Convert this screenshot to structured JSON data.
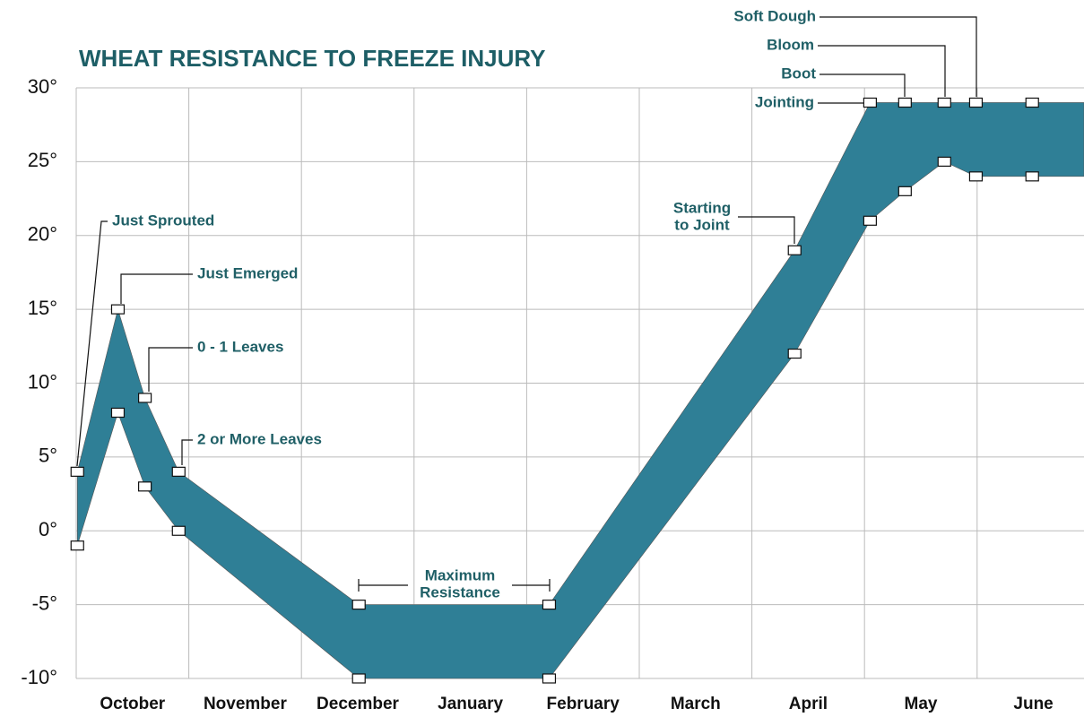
{
  "chart_data": {
    "type": "band",
    "title": "WHEAT RESISTANCE TO FREEZE INJURY",
    "categories": [
      "October",
      "November",
      "December",
      "January",
      "February",
      "March",
      "April",
      "May",
      "June"
    ],
    "x": [
      0.01,
      0.37,
      0.61,
      0.91,
      2.51,
      4.2,
      6.38,
      7.05,
      7.36,
      7.71,
      7.99,
      8.49,
      8.95
    ],
    "high": [
      4,
      15,
      9,
      4,
      -5,
      -5,
      19,
      29,
      29,
      29,
      29,
      29,
      29
    ],
    "low": [
      -1,
      8,
      3,
      0,
      -10,
      -10,
      12,
      21,
      23,
      25,
      24,
      24,
      24
    ],
    "color": "#2f7f96",
    "xlim": [
      0,
      8.95
    ],
    "ylim": [
      -10,
      30
    ],
    "yticks": [
      {
        "value": -10,
        "label": "-10°"
      },
      {
        "value": -5,
        "label": "-5°"
      },
      {
        "value": 0,
        "label": "0°"
      },
      {
        "value": 5,
        "label": "5°"
      },
      {
        "value": 10,
        "label": "10°"
      },
      {
        "value": 15,
        "label": "15°"
      },
      {
        "value": 20,
        "label": "20°"
      },
      {
        "value": 25,
        "label": "25°"
      },
      {
        "value": 30,
        "label": "30°"
      }
    ],
    "grid": true,
    "annotations": [
      {
        "lines": [
          "Just Sprouted"
        ]
      },
      {
        "lines": [
          "Just Emerged"
        ]
      },
      {
        "lines": [
          "0 - 1 Leaves"
        ]
      },
      {
        "lines": [
          "2 or More Leaves"
        ]
      },
      {
        "lines": [
          "Maximum",
          "Resistance"
        ]
      },
      {
        "lines": [
          "Starting",
          "to Joint"
        ]
      },
      {
        "lines": [
          "Jointing"
        ]
      },
      {
        "lines": [
          "Boot"
        ]
      },
      {
        "lines": [
          "Bloom"
        ]
      },
      {
        "lines": [
          "Soft Dough"
        ]
      }
    ]
  }
}
